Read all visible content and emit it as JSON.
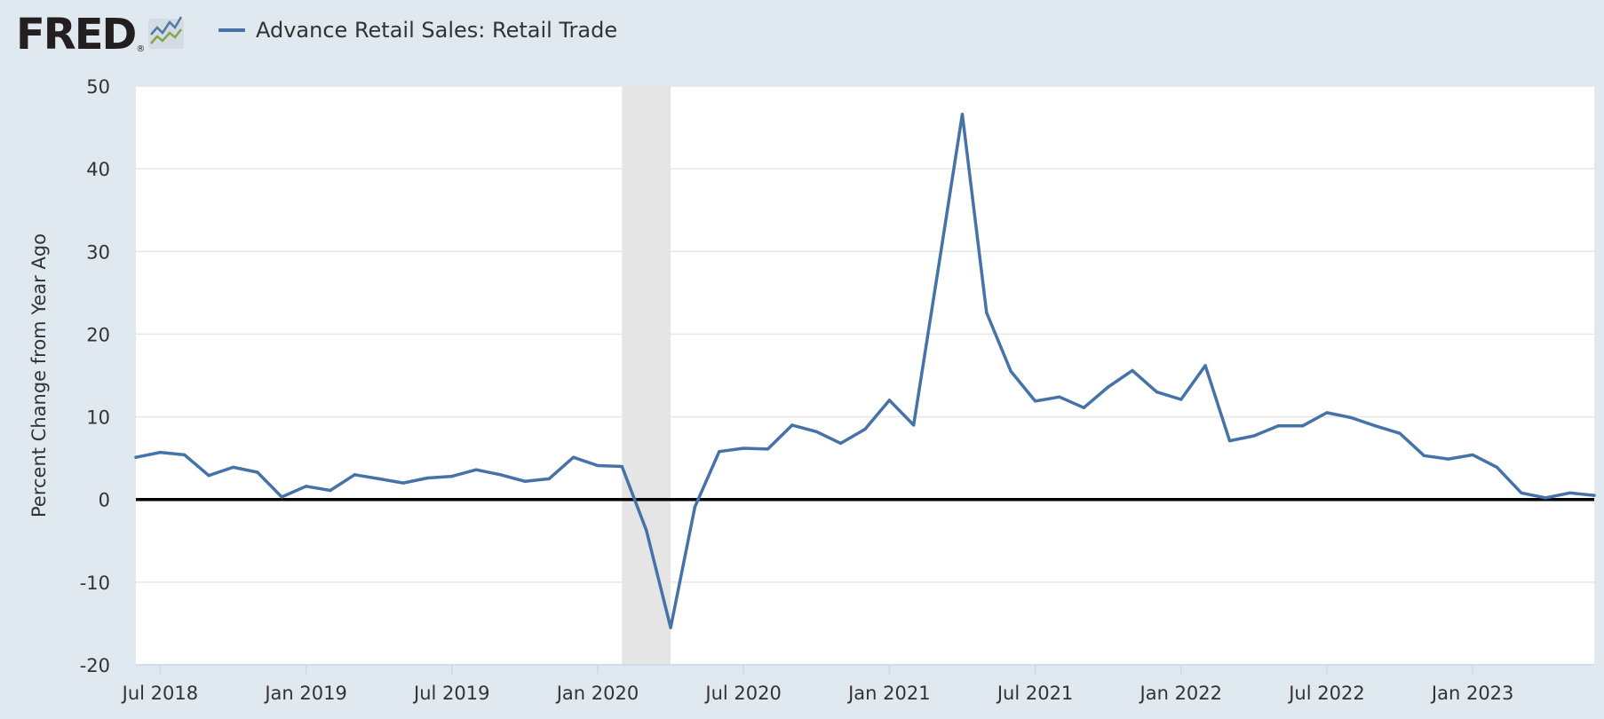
{
  "header": {
    "logo_text": "FRED",
    "logo_reg": "®",
    "logo_icon": "line-chart-icon"
  },
  "colors": {
    "background": "#e1e9f0",
    "plot_background": "#ffffff",
    "series": "#4572a7",
    "recession": "#e5e5e5",
    "gridline": "#e6e6e6",
    "zero_line": "#000000",
    "text": "#333333"
  },
  "chart_data": {
    "type": "line",
    "title": "",
    "xlabel": "",
    "ylabel": "Percent Change from Year Ago",
    "ylim": [
      -20,
      50
    ],
    "xlim": [
      "2018-06",
      "2023-06"
    ],
    "yticks": [
      -20,
      -10,
      0,
      10,
      20,
      30,
      40,
      50
    ],
    "xticks": [
      {
        "date": "2018-07",
        "label": "Jul 2018"
      },
      {
        "date": "2019-01",
        "label": "Jan 2019"
      },
      {
        "date": "2019-07",
        "label": "Jul 2019"
      },
      {
        "date": "2020-01",
        "label": "Jan 2020"
      },
      {
        "date": "2020-07",
        "label": "Jul 2020"
      },
      {
        "date": "2021-01",
        "label": "Jan 2021"
      },
      {
        "date": "2021-07",
        "label": "Jul 2021"
      },
      {
        "date": "2022-01",
        "label": "Jan 2022"
      },
      {
        "date": "2022-07",
        "label": "Jul 2022"
      },
      {
        "date": "2023-01",
        "label": "Jan 2023"
      }
    ],
    "recession": {
      "start": "2020-02",
      "end": "2020-04"
    },
    "grid": true,
    "legend": "top-left",
    "series": [
      {
        "name": "Advance Retail Sales: Retail Trade",
        "x": [
          "2018-06",
          "2018-07",
          "2018-08",
          "2018-09",
          "2018-10",
          "2018-11",
          "2018-12",
          "2019-01",
          "2019-02",
          "2019-03",
          "2019-04",
          "2019-05",
          "2019-06",
          "2019-07",
          "2019-08",
          "2019-09",
          "2019-10",
          "2019-11",
          "2019-12",
          "2020-01",
          "2020-02",
          "2020-03",
          "2020-04",
          "2020-05",
          "2020-06",
          "2020-07",
          "2020-08",
          "2020-09",
          "2020-10",
          "2020-11",
          "2020-12",
          "2021-01",
          "2021-02",
          "2021-03",
          "2021-04",
          "2021-05",
          "2021-06",
          "2021-07",
          "2021-08",
          "2021-09",
          "2021-10",
          "2021-11",
          "2021-12",
          "2022-01",
          "2022-02",
          "2022-03",
          "2022-04",
          "2022-05",
          "2022-06",
          "2022-07",
          "2022-08",
          "2022-09",
          "2022-10",
          "2022-11",
          "2022-12",
          "2023-01",
          "2023-02",
          "2023-03",
          "2023-04",
          "2023-05",
          "2023-06"
        ],
        "values": [
          5.1,
          5.7,
          5.4,
          2.9,
          3.9,
          3.3,
          0.3,
          1.6,
          1.1,
          3.0,
          2.5,
          2.0,
          2.6,
          2.8,
          3.6,
          3.0,
          2.2,
          2.5,
          5.1,
          4.1,
          4.0,
          -3.7,
          -15.5,
          -0.9,
          5.8,
          6.2,
          6.1,
          9.0,
          8.2,
          6.8,
          8.5,
          12.0,
          9.0,
          27.7,
          46.6,
          22.6,
          15.5,
          11.9,
          12.4,
          11.1,
          13.6,
          15.6,
          13.0,
          12.1,
          16.2,
          7.1,
          7.7,
          8.9,
          8.9,
          10.5,
          9.9,
          8.9,
          8.0,
          5.3,
          4.9,
          5.4,
          3.9,
          0.8,
          0.2,
          0.8,
          0.5
        ]
      }
    ]
  }
}
